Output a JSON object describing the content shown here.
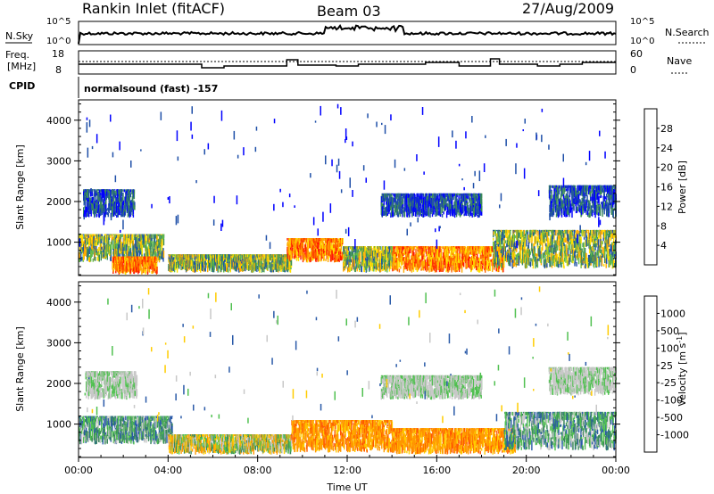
{
  "header": {
    "station": "Rankin Inlet (fitACF)",
    "beam": "Beam 03",
    "date": "27/Aug/2009"
  },
  "side_labels": {
    "nsky": "N.Sky",
    "nsearch": "N.Search",
    "freq_line1": "Freq.",
    "freq_line2": "[MHz]",
    "nave": "Nave",
    "cpid": "CPID",
    "cpid_text": "normalsound (fast) -157"
  },
  "mini_axes": {
    "noise_left": [
      "10^5",
      "10^0"
    ],
    "noise_right": [
      "10^5",
      "10^0"
    ],
    "freq_left": [
      "18",
      "8"
    ],
    "nave_right": [
      "60",
      "0"
    ]
  },
  "colors": {
    "power": [
      "#0000ff",
      "#1f4fa8",
      "#3a8a5a",
      "#5fba4a",
      "#ffe000",
      "#ffaa00",
      "#ff6000",
      "#ff1a00"
    ],
    "velocity": [
      "#ff0000",
      "#ff5a00",
      "#ff9a00",
      "#ffcc00",
      "#c8c8c8",
      "#50c050",
      "#3a8a5a",
      "#2a5aa8",
      "#1a2aa0"
    ]
  },
  "chart_data": [
    {
      "type": "heatmap",
      "panel": "power",
      "ylabel": "Slant Range [km]",
      "ylim": [
        180,
        4500
      ],
      "yticks": [
        1000,
        2000,
        3000,
        4000
      ],
      "colorbar_label": "Power [dB]",
      "colorbar_ticks": [
        "28",
        "24",
        "20",
        "16",
        "12",
        "8",
        "4"
      ],
      "xlim_hours": [
        0,
        24
      ],
      "bands": [
        {
          "t0": 0.0,
          "t1": 3.8,
          "r0": 500,
          "r1": 1200,
          "level": "mid"
        },
        {
          "t0": 1.5,
          "t1": 3.5,
          "r0": 200,
          "r1": 650,
          "level": "high"
        },
        {
          "t0": 0.2,
          "t1": 2.5,
          "r0": 1600,
          "r1": 2300,
          "level": "low"
        },
        {
          "t0": 4.0,
          "t1": 9.5,
          "r0": 250,
          "r1": 700,
          "level": "mid"
        },
        {
          "t0": 9.3,
          "t1": 11.8,
          "r0": 500,
          "r1": 1100,
          "level": "high"
        },
        {
          "t0": 11.8,
          "t1": 14.0,
          "r0": 250,
          "r1": 900,
          "level": "mid"
        },
        {
          "t0": 14.0,
          "t1": 19.0,
          "r0": 250,
          "r1": 900,
          "level": "high"
        },
        {
          "t0": 18.5,
          "t1": 24.0,
          "r0": 350,
          "r1": 1300,
          "level": "mid"
        },
        {
          "t0": 13.5,
          "t1": 18.0,
          "r0": 1600,
          "r1": 2200,
          "level": "low"
        },
        {
          "t0": 21.0,
          "t1": 24.0,
          "r0": 1600,
          "r1": 2400,
          "level": "low"
        }
      ]
    },
    {
      "type": "heatmap",
      "panel": "velocity",
      "ylabel": "Slant Range [km]",
      "xlabel": "Time UT",
      "ylim": [
        180,
        4500
      ],
      "yticks": [
        1000,
        2000,
        3000,
        4000
      ],
      "xticks": [
        "00:00",
        "04:00",
        "08:00",
        "12:00",
        "16:00",
        "20:00",
        "00:00"
      ],
      "colorbar_label": "Velocity [m s^-1]",
      "colorbar_ticks": [
        "1000",
        "500",
        "100",
        "25",
        "-25",
        "-100",
        "-500",
        "-1000"
      ],
      "xlim_hours": [
        0,
        24
      ],
      "bands": [
        {
          "t0": 0.0,
          "t1": 4.2,
          "r0": 500,
          "r1": 1200,
          "level": "pos"
        },
        {
          "t0": 0.3,
          "t1": 2.6,
          "r0": 1600,
          "r1": 2300,
          "level": "zero"
        },
        {
          "t0": 4.0,
          "t1": 9.5,
          "r0": 250,
          "r1": 750,
          "level": "mix"
        },
        {
          "t0": 9.5,
          "t1": 14.0,
          "r0": 300,
          "r1": 1100,
          "level": "neg"
        },
        {
          "t0": 14.0,
          "t1": 19.5,
          "r0": 250,
          "r1": 900,
          "level": "neg"
        },
        {
          "t0": 19.0,
          "t1": 24.0,
          "r0": 350,
          "r1": 1300,
          "level": "pos"
        },
        {
          "t0": 13.5,
          "t1": 18.0,
          "r0": 1600,
          "r1": 2200,
          "level": "zero"
        },
        {
          "t0": 21.0,
          "t1": 24.0,
          "r0": 1700,
          "r1": 2400,
          "level": "zero"
        }
      ]
    }
  ]
}
